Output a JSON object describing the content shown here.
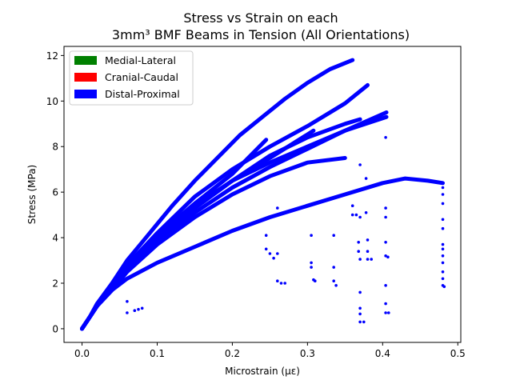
{
  "chart_data": {
    "type": "scatter",
    "title_line1": "Stress vs Strain on each",
    "title_line2": "3mm³ BMF Beams in Tension (All Orientations)",
    "xlabel": "Microstrain (με)",
    "ylabel": "Stress (MPa)",
    "xlim": [
      -0.024,
      0.504
    ],
    "ylim": [
      -0.6,
      12.4
    ],
    "xticks": [
      "0.0",
      "0.1",
      "0.2",
      "0.3",
      "0.4",
      "0.5"
    ],
    "yticks": [
      "0",
      "2",
      "4",
      "6",
      "8",
      "10",
      "12"
    ],
    "legend_position": "upper-left",
    "legend": [
      {
        "name": "Medial-Lateral",
        "color": "#008000"
      },
      {
        "name": "Cranial-Caudal",
        "color": "#ff0000"
      },
      {
        "name": "Distal-Proximal",
        "color": "#0000ff"
      }
    ],
    "series": [
      {
        "color": "#0000ff",
        "points": [
          [
            0,
            0
          ],
          [
            0.01,
            0.5
          ],
          [
            0.02,
            1.1
          ],
          [
            0.04,
            2.0
          ],
          [
            0.06,
            3.0
          ],
          [
            0.08,
            3.8
          ],
          [
            0.1,
            4.6
          ],
          [
            0.12,
            5.4
          ],
          [
            0.15,
            6.5
          ],
          [
            0.18,
            7.5
          ],
          [
            0.21,
            8.5
          ],
          [
            0.24,
            9.3
          ],
          [
            0.27,
            10.1
          ],
          [
            0.3,
            10.8
          ],
          [
            0.33,
            11.4
          ],
          [
            0.36,
            11.8
          ]
        ]
      },
      {
        "color": "#0000ff",
        "points": [
          [
            0,
            0
          ],
          [
            0.01,
            0.5
          ],
          [
            0.02,
            1.0
          ],
          [
            0.04,
            1.9
          ],
          [
            0.06,
            2.8
          ],
          [
            0.1,
            4.2
          ],
          [
            0.15,
            5.8
          ],
          [
            0.2,
            7.0
          ],
          [
            0.25,
            8.0
          ],
          [
            0.3,
            8.9
          ],
          [
            0.35,
            9.9
          ],
          [
            0.38,
            10.7
          ]
        ]
      },
      {
        "color": "#0000ff",
        "points": [
          [
            0,
            0
          ],
          [
            0.01,
            0.5
          ],
          [
            0.02,
            1.0
          ],
          [
            0.04,
            1.9
          ],
          [
            0.06,
            2.8
          ],
          [
            0.1,
            4.1
          ],
          [
            0.15,
            5.4
          ],
          [
            0.2,
            6.5
          ],
          [
            0.25,
            7.3
          ],
          [
            0.3,
            8.0
          ],
          [
            0.35,
            8.7
          ],
          [
            0.405,
            9.5
          ]
        ]
      },
      {
        "color": "#0000ff",
        "points": [
          [
            0,
            0
          ],
          [
            0.01,
            0.5
          ],
          [
            0.02,
            1.0
          ],
          [
            0.04,
            1.8
          ],
          [
            0.06,
            2.6
          ],
          [
            0.1,
            3.9
          ],
          [
            0.15,
            5.1
          ],
          [
            0.2,
            6.2
          ],
          [
            0.25,
            7.1
          ],
          [
            0.3,
            7.9
          ],
          [
            0.35,
            8.7
          ],
          [
            0.405,
            9.3
          ]
        ]
      },
      {
        "color": "#0000ff",
        "points": [
          [
            0,
            0
          ],
          [
            0.01,
            0.5
          ],
          [
            0.02,
            1.0
          ],
          [
            0.04,
            1.8
          ],
          [
            0.06,
            2.7
          ],
          [
            0.1,
            4.0
          ],
          [
            0.15,
            5.3
          ],
          [
            0.2,
            6.5
          ],
          [
            0.25,
            7.6
          ],
          [
            0.3,
            8.4
          ],
          [
            0.35,
            9.0
          ],
          [
            0.37,
            9.2
          ]
        ]
      },
      {
        "color": "#0000ff",
        "points": [
          [
            0,
            0
          ],
          [
            0.01,
            0.5
          ],
          [
            0.02,
            1.0
          ],
          [
            0.04,
            1.7
          ],
          [
            0.06,
            2.5
          ],
          [
            0.1,
            3.7
          ],
          [
            0.15,
            4.9
          ],
          [
            0.2,
            5.9
          ],
          [
            0.25,
            6.7
          ],
          [
            0.3,
            7.3
          ],
          [
            0.35,
            7.5
          ]
        ]
      },
      {
        "color": "#0000ff",
        "points": [
          [
            0,
            0
          ],
          [
            0.01,
            0.5
          ],
          [
            0.02,
            1.0
          ],
          [
            0.04,
            1.8
          ],
          [
            0.06,
            2.7
          ],
          [
            0.1,
            4.1
          ],
          [
            0.15,
            5.5
          ],
          [
            0.2,
            6.8
          ],
          [
            0.245,
            8.3
          ]
        ]
      },
      {
        "color": "#0000ff",
        "points": [
          [
            0,
            0
          ],
          [
            0.01,
            0.5
          ],
          [
            0.02,
            1.0
          ],
          [
            0.04,
            1.9
          ],
          [
            0.06,
            2.7
          ],
          [
            0.1,
            4.0
          ],
          [
            0.15,
            5.3
          ],
          [
            0.2,
            6.5
          ],
          [
            0.25,
            7.5
          ],
          [
            0.308,
            8.7
          ]
        ]
      },
      {
        "color": "#0000ff",
        "points": [
          [
            0,
            0
          ],
          [
            0.01,
            0.5
          ],
          [
            0.02,
            1.0
          ],
          [
            0.04,
            1.7
          ],
          [
            0.06,
            2.2
          ],
          [
            0.1,
            2.9
          ],
          [
            0.15,
            3.6
          ],
          [
            0.2,
            4.3
          ],
          [
            0.25,
            4.9
          ],
          [
            0.3,
            5.4
          ],
          [
            0.35,
            5.9
          ],
          [
            0.4,
            6.4
          ],
          [
            0.43,
            6.6
          ],
          [
            0.46,
            6.5
          ],
          [
            0.48,
            6.4
          ]
        ]
      }
    ],
    "scatter_points": [
      [
        0.06,
        1.2
      ],
      [
        0.06,
        0.7
      ],
      [
        0.07,
        0.8
      ],
      [
        0.075,
        0.85
      ],
      [
        0.08,
        0.9
      ],
      [
        0.245,
        4.1
      ],
      [
        0.245,
        3.5
      ],
      [
        0.25,
        3.3
      ],
      [
        0.26,
        3.3
      ],
      [
        0.255,
        3.1
      ],
      [
        0.26,
        5.3
      ],
      [
        0.26,
        2.1
      ],
      [
        0.265,
        2.0
      ],
      [
        0.27,
        2.0
      ],
      [
        0.305,
        4.1
      ],
      [
        0.305,
        2.9
      ],
      [
        0.305,
        2.7
      ],
      [
        0.308,
        2.15
      ],
      [
        0.31,
        2.1
      ],
      [
        0.335,
        4.1
      ],
      [
        0.335,
        2.7
      ],
      [
        0.335,
        2.1
      ],
      [
        0.338,
        1.9
      ],
      [
        0.36,
        5.4
      ],
      [
        0.36,
        5.0
      ],
      [
        0.365,
        5.0
      ],
      [
        0.37,
        7.2
      ],
      [
        0.37,
        4.9
      ],
      [
        0.368,
        3.8
      ],
      [
        0.368,
        3.4
      ],
      [
        0.37,
        3.05
      ],
      [
        0.37,
        1.6
      ],
      [
        0.37,
        0.9
      ],
      [
        0.37,
        0.65
      ],
      [
        0.37,
        0.3
      ],
      [
        0.375,
        0.3
      ],
      [
        0.378,
        6.6
      ],
      [
        0.378,
        5.1
      ],
      [
        0.38,
        3.9
      ],
      [
        0.38,
        3.4
      ],
      [
        0.38,
        3.05
      ],
      [
        0.385,
        3.05
      ],
      [
        0.404,
        8.4
      ],
      [
        0.404,
        5.3
      ],
      [
        0.404,
        4.9
      ],
      [
        0.404,
        3.8
      ],
      [
        0.404,
        3.2
      ],
      [
        0.407,
        3.15
      ],
      [
        0.404,
        1.9
      ],
      [
        0.404,
        1.1
      ],
      [
        0.404,
        0.7
      ],
      [
        0.408,
        0.7
      ],
      [
        0.48,
        6.2
      ],
      [
        0.48,
        5.9
      ],
      [
        0.48,
        5.5
      ],
      [
        0.48,
        4.8
      ],
      [
        0.48,
        4.4
      ],
      [
        0.48,
        3.7
      ],
      [
        0.48,
        3.5
      ],
      [
        0.48,
        3.2
      ],
      [
        0.48,
        2.9
      ],
      [
        0.48,
        2.5
      ],
      [
        0.48,
        2.2
      ],
      [
        0.48,
        1.9
      ],
      [
        0.482,
        1.85
      ]
    ]
  }
}
